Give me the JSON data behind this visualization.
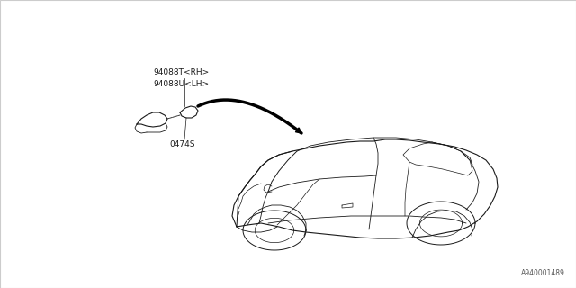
{
  "bg_color": "#ffffff",
  "border_color": "#cccccc",
  "line_color": "#1a1a1a",
  "part_label1": "94088T<RH>",
  "part_label2": "94088U<LH>",
  "part_label3": "0474S",
  "diagram_id": "A940001489",
  "font_size_label": 6.5,
  "font_size_id": 5.5
}
